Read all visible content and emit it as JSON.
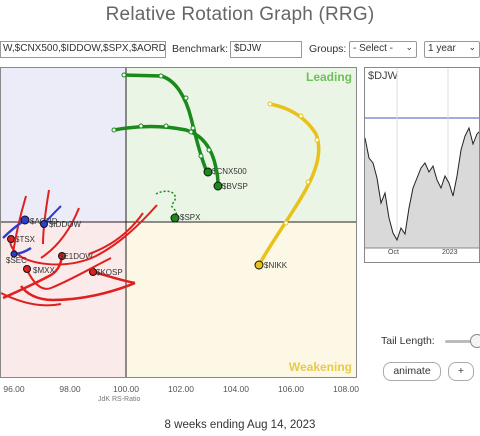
{
  "header": {
    "title": "Relative Rotation Graph (RRG)"
  },
  "toolbar": {
    "symbols_value": "W,$CNX500,$IDDOW,$SPX,$AORD",
    "benchmark_label": "Benchmark:",
    "benchmark_value": "$DJW",
    "groups_label": "Groups:",
    "groups_selected": "- Select -",
    "period_selected": "1 year"
  },
  "quadrants": {
    "leading": "Leading",
    "weakening": "Weakening"
  },
  "axis": {
    "x_ticks": [
      "96.00",
      "98.00",
      "100.00",
      "102.00",
      "104.00",
      "106.00",
      "108.00"
    ],
    "x_label": "JdK RS-Ratio"
  },
  "securities": [
    {
      "label": "$CNX500",
      "color": "#1a8a1a"
    },
    {
      "label": "$BVSP",
      "color": "#1a8a1a"
    },
    {
      "label": "$SPX",
      "color": "#1a8a1a"
    },
    {
      "label": "$NIKK",
      "color": "#e8c21a"
    },
    {
      "label": "$AORD",
      "color": "#2a3fd0"
    },
    {
      "label": "$IDDOW",
      "color": "#2a3fd0"
    },
    {
      "label": "$TSX",
      "color": "#e02020"
    },
    {
      "label": "$SEC",
      "color": "#2a3fd0"
    },
    {
      "label": "$MXX",
      "color": "#e02020"
    },
    {
      "label": "$E1DOW",
      "color": "#e02020"
    },
    {
      "label": "$KOSP",
      "color": "#e02020"
    }
  ],
  "mini_chart": {
    "title": "$DJW",
    "x_labels": [
      "Oct",
      "2023"
    ]
  },
  "controls": {
    "tail_length_label": "Tail Length:",
    "animate_label": "animate",
    "plus_label": "+"
  },
  "footer": {
    "period_text": "8 weeks ending Aug 14, 2023"
  }
}
